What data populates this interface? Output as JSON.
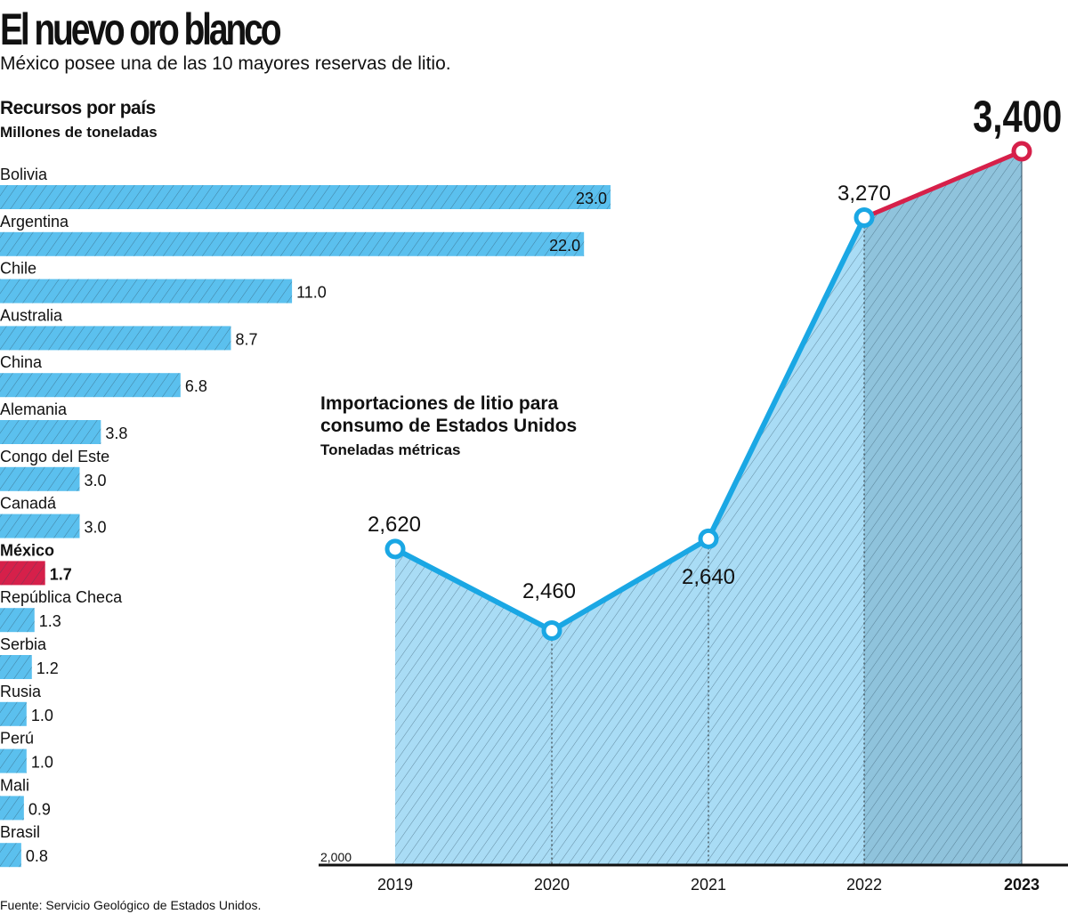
{
  "title": "El nuevo oro blanco",
  "subtitle": "México posee una de las 10 mayores reservas de litio.",
  "source": "Fuente: Servicio Geológico de Estados Unidos.",
  "colors": {
    "bar": "#5bc0ee",
    "highlight": "#d6204a",
    "area": "#a9dcf5",
    "area_dark": "#8fc3dc",
    "line": "#1aa7e4",
    "line_highlight": "#d6204a"
  },
  "chart_data": [
    {
      "type": "bar",
      "orientation": "horizontal",
      "title": "Recursos por país",
      "subtitle": "Millones de toneladas",
      "categories": [
        "Bolivia",
        "Argentina",
        "Chile",
        "Australia",
        "China",
        "Alemania",
        "Congo del Este",
        "Canadá",
        "México",
        "República Checa",
        "Serbia",
        "Rusia",
        "Perú",
        "Mali",
        "Brasil"
      ],
      "values": [
        23.0,
        22.0,
        11.0,
        8.7,
        6.8,
        3.8,
        3.0,
        3.0,
        1.7,
        1.3,
        1.2,
        1.0,
        1.0,
        0.9,
        0.8
      ],
      "labels": [
        "23.0",
        "22.0",
        "11.0",
        "8.7",
        "6.8",
        "3.8",
        "3.0",
        "3.0",
        "1.7",
        "1.3",
        "1.2",
        "1.0",
        "1.0",
        "0.9",
        "0.8"
      ],
      "highlight": "México"
    },
    {
      "type": "area",
      "title": "Importaciones de litio para consumo de Estados Unidos",
      "subtitle": "Toneladas métricas",
      "x": [
        "2019",
        "2020",
        "2021",
        "2022",
        "2023"
      ],
      "values": [
        2620,
        2460,
        2640,
        3270,
        3400
      ],
      "labels": [
        "2,620",
        "2,460",
        "2,640",
        "3,270",
        "3,400"
      ],
      "ylim": [
        2000,
        3400
      ],
      "ytick": "2,000",
      "highlight": "2023"
    }
  ]
}
